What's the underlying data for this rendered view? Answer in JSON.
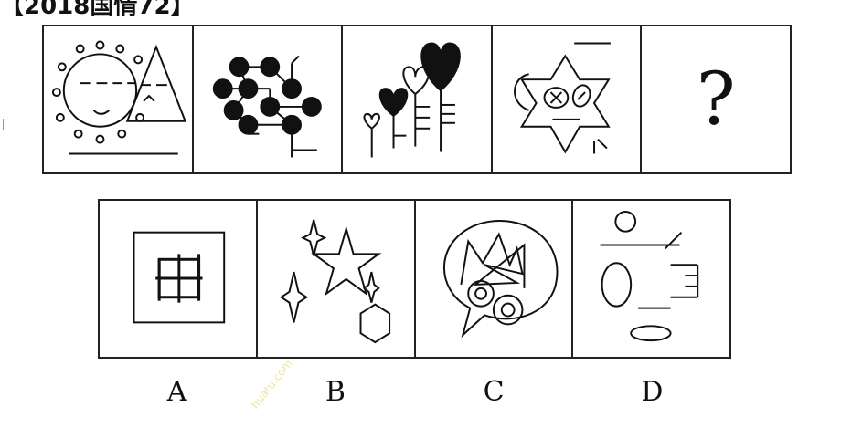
{
  "header": {
    "text": "【2018国情72】"
  },
  "question": {
    "panels": [
      {
        "icon": "sun-triangle-icon"
      },
      {
        "icon": "dots-network-icon"
      },
      {
        "icon": "hearts-balloons-icon"
      },
      {
        "icon": "star-face-icon"
      },
      {
        "icon": "question-mark-icon",
        "text": "?"
      }
    ]
  },
  "options": [
    {
      "label": "A",
      "icon": "grid-in-square-icon"
    },
    {
      "label": "B",
      "icon": "stars-hexagon-icon"
    },
    {
      "label": "C",
      "icon": "speech-bubble-scribble-icon"
    },
    {
      "label": "D",
      "icon": "scattered-shapes-icon"
    }
  ],
  "watermark": {
    "text": "huatu.com"
  }
}
